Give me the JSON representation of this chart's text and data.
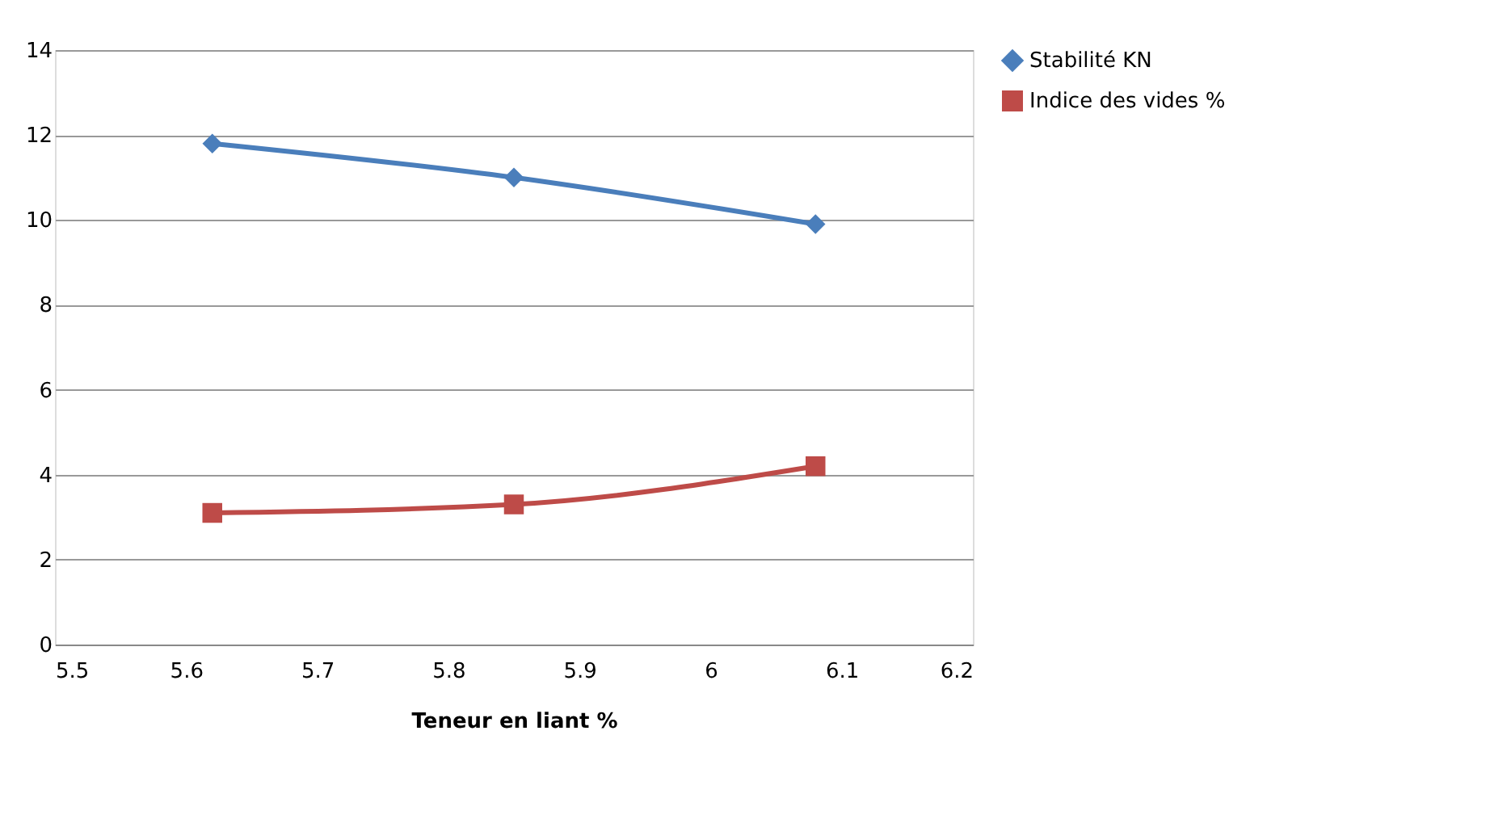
{
  "chart_data": {
    "type": "line",
    "xlabel": "Teneur en liant %",
    "x": [
      5.62,
      5.85,
      6.08
    ],
    "series": [
      {
        "name": "Stabilité KN",
        "color": "#4a7ebb",
        "values": [
          11.8,
          11.0,
          9.9
        ],
        "marker": "diamond"
      },
      {
        "name": "Indice des vides %",
        "color": "#be4b48",
        "values": [
          3.1,
          3.3,
          4.2
        ],
        "marker": "square"
      }
    ],
    "xlim": [
      5.5,
      6.2
    ],
    "xticks": [
      5.5,
      5.6,
      5.7,
      5.8,
      5.9,
      6,
      6.1,
      6.2
    ],
    "ylim": [
      0,
      14
    ],
    "yticks": [
      0,
      2,
      4,
      6,
      8,
      10,
      12,
      14
    ],
    "grid": "y",
    "legend": "right",
    "line_style": "solid"
  }
}
